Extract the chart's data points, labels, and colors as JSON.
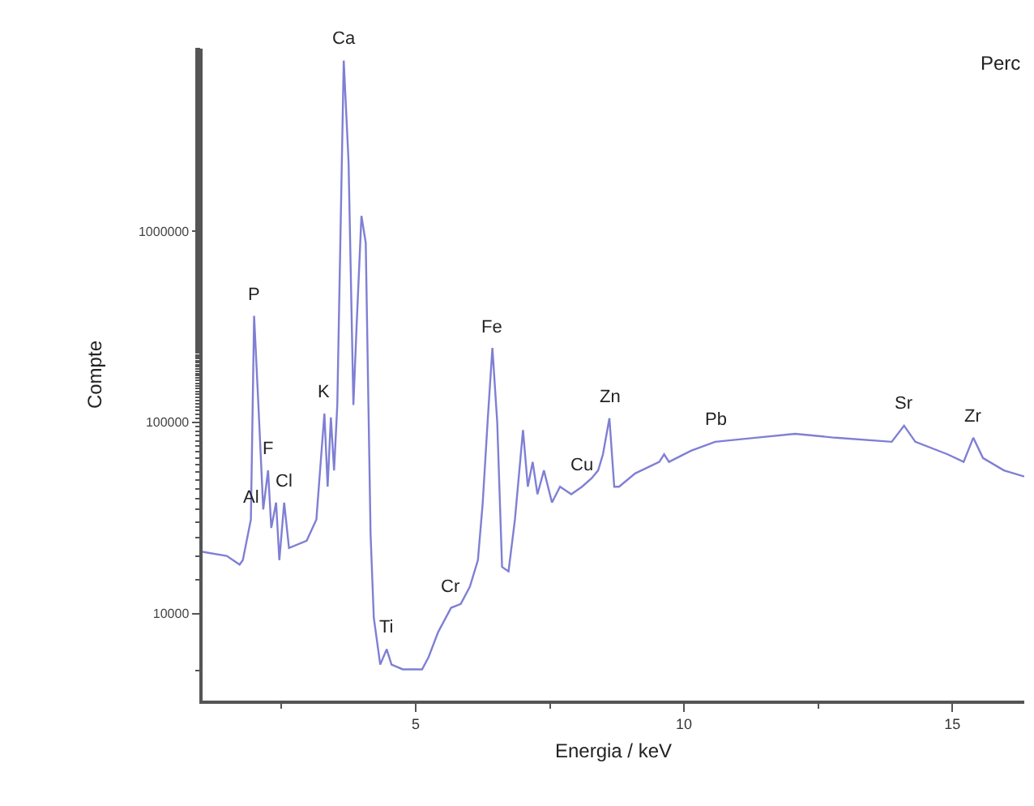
{
  "chart_data": {
    "type": "line",
    "xlabel": "Energia / keV",
    "ylabel": "Compte",
    "log": "y",
    "xlim": [
      1.03,
      16.34
    ],
    "xticks": [
      5,
      10,
      15
    ],
    "ylim": [
      3500,
      9000000
    ],
    "yticks": [
      10000,
      100000,
      1000000
    ],
    "marker": "none",
    "line_style": "solid",
    "series": [
      {
        "color": "#7f7fd5",
        "x": [
          1.03,
          1.48,
          1.72,
          1.78,
          1.93,
          1.99,
          2.07,
          2.16,
          2.25,
          2.31,
          2.4,
          2.46,
          2.55,
          2.64,
          2.97,
          3.15,
          3.24,
          3.3,
          3.36,
          3.42,
          3.48,
          3.54,
          3.66,
          3.75,
          3.84,
          3.9,
          3.99,
          4.07,
          4.16,
          4.22,
          4.34,
          4.46,
          4.55,
          4.76,
          5.12,
          5.24,
          5.42,
          5.66,
          5.84,
          6.01,
          6.16,
          6.25,
          6.34,
          6.43,
          6.52,
          6.61,
          6.73,
          6.85,
          7.0,
          7.09,
          7.18,
          7.27,
          7.39,
          7.54,
          7.69,
          7.9,
          8.1,
          8.28,
          8.4,
          8.49,
          8.61,
          8.7,
          8.79,
          9.09,
          9.54,
          9.63,
          9.72,
          10.13,
          10.58,
          11.33,
          12.07,
          12.82,
          13.87,
          14.1,
          14.31,
          14.91,
          15.21,
          15.39,
          15.57,
          15.96,
          16.34
        ],
        "values": [
          21000,
          20000,
          18000,
          19000,
          31000,
          360000,
          123000,
          35000,
          56000,
          28000,
          38000,
          19000,
          38000,
          22000,
          24000,
          31000,
          67000,
          111000,
          46000,
          106000,
          56000,
          123000,
          7800000,
          2300000,
          123000,
          320000,
          1200000,
          870000,
          26000,
          9500,
          5400,
          6500,
          5400,
          5100,
          5100,
          5900,
          8000,
          10700,
          11200,
          13800,
          19000,
          38000,
          100000,
          245000,
          100000,
          17500,
          16600,
          31000,
          91000,
          46000,
          62000,
          42000,
          56000,
          38000,
          46000,
          42000,
          46000,
          51000,
          56000,
          68000,
          105000,
          46000,
          46000,
          54000,
          62000,
          68000,
          62000,
          71000,
          79000,
          83000,
          87000,
          83000,
          79000,
          96000,
          79000,
          68000,
          62000,
          83000,
          65000,
          56000,
          52000
        ]
      }
    ],
    "annotations": [
      {
        "text": "Al",
        "x": 1.93,
        "y": 31000
      },
      {
        "text": "P",
        "x": 1.99,
        "y": 360000
      },
      {
        "text": "F",
        "x": 2.25,
        "y": 56000
      },
      {
        "text": "Cl",
        "x": 2.55,
        "y": 38000
      },
      {
        "text": "K",
        "x": 3.3,
        "y": 111000
      },
      {
        "text": "Ca",
        "x": 3.66,
        "y": 7800000
      },
      {
        "text": "Ti",
        "x": 4.46,
        "y": 6500
      },
      {
        "text": "Cr",
        "x": 5.66,
        "y": 10700
      },
      {
        "text": "Fe",
        "x": 6.43,
        "y": 245000
      },
      {
        "text": "Cu",
        "x": 8.1,
        "y": 46000
      },
      {
        "text": "Zn",
        "x": 8.61,
        "y": 105000
      },
      {
        "text": "Pb",
        "x": 10.58,
        "y": 79000
      },
      {
        "text": "Sr",
        "x": 14.1,
        "y": 96000
      },
      {
        "text": "Zr",
        "x": 15.39,
        "y": 83000
      },
      "Perc"
    ]
  }
}
